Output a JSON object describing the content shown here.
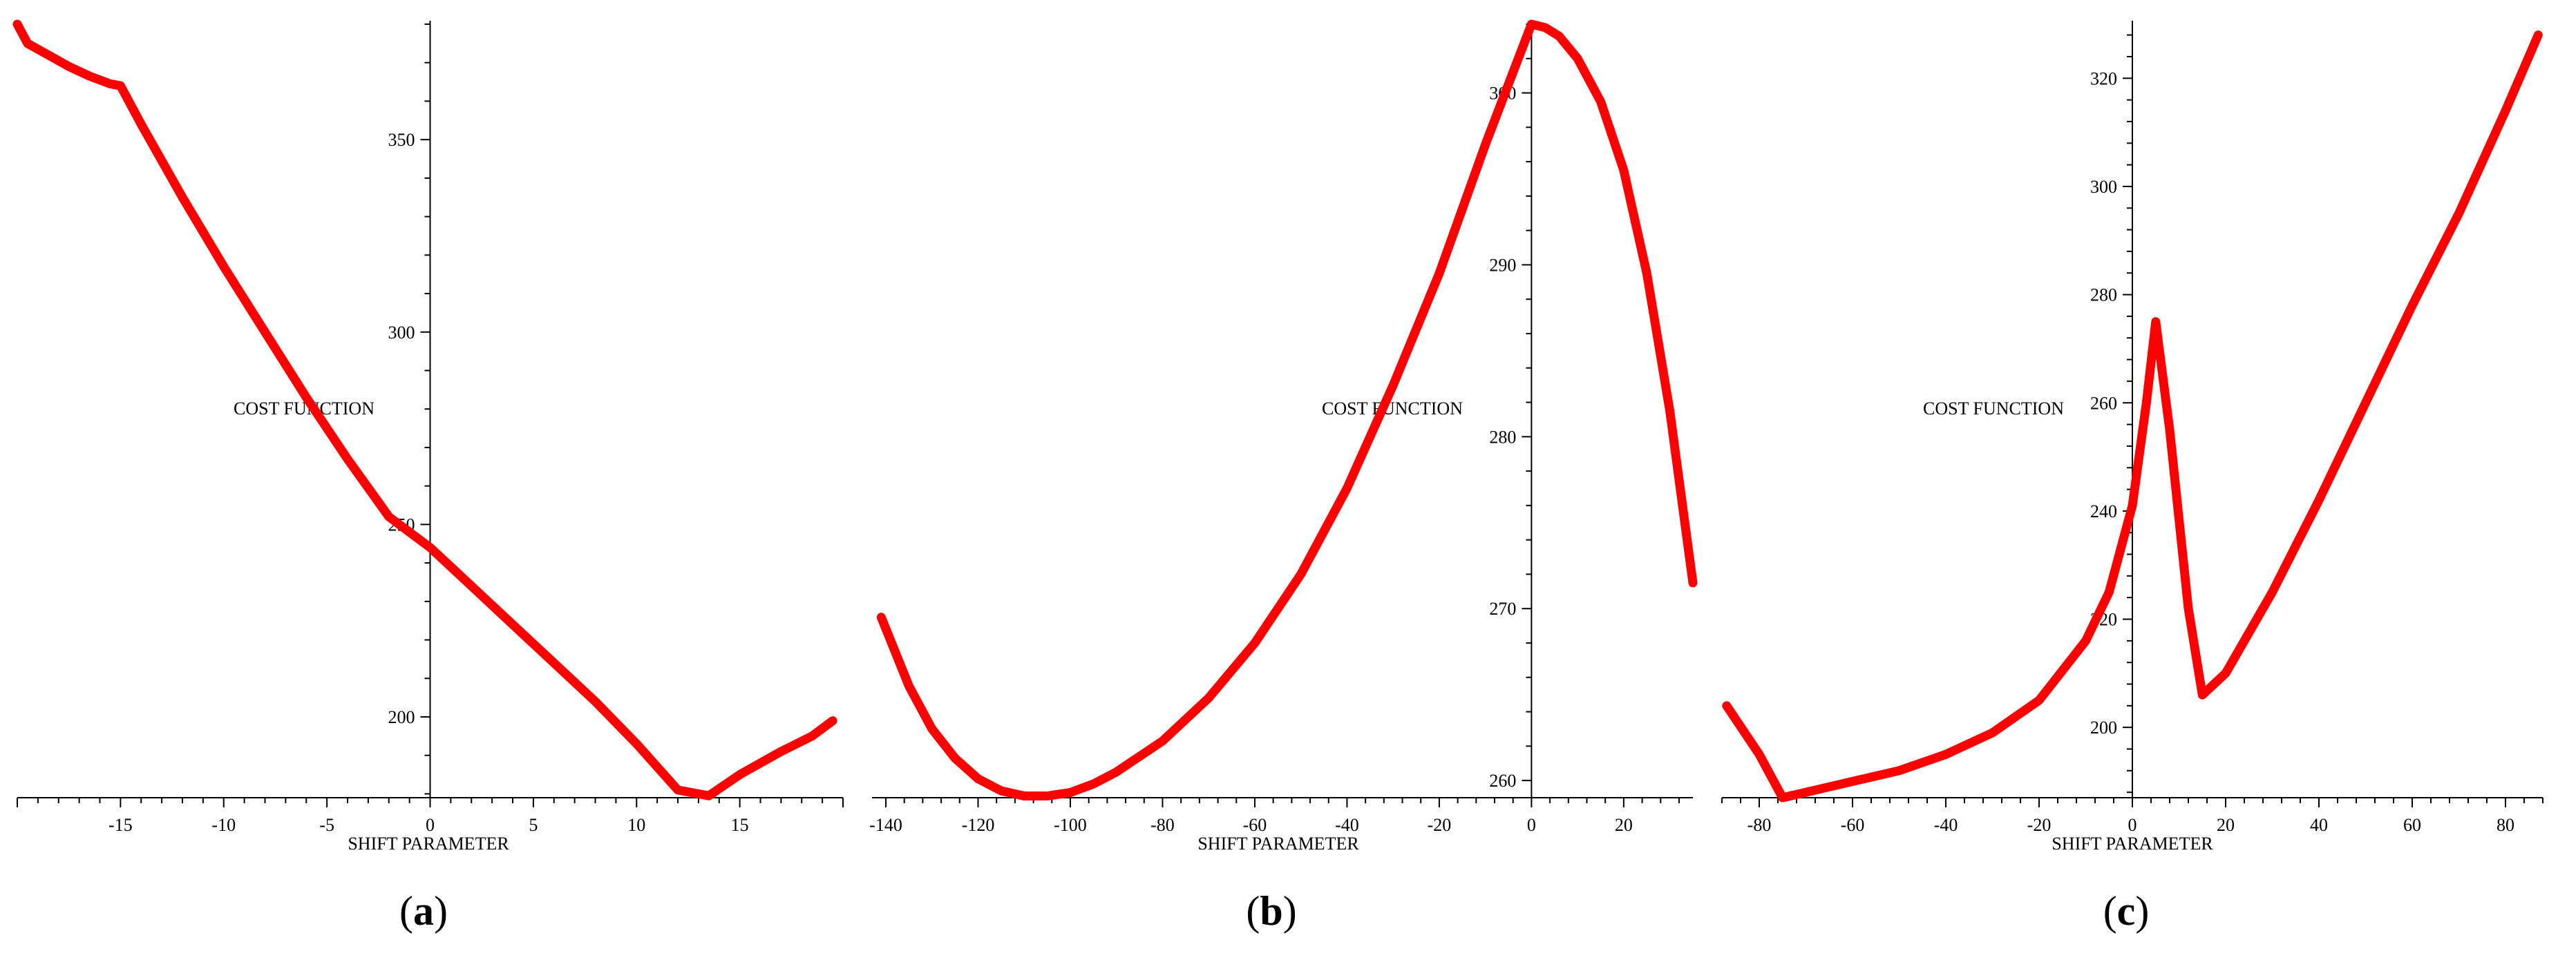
{
  "chart_data": [
    {
      "type": "line",
      "panel_label": "a",
      "xlabel": "SHIFT PARAMETER",
      "ylabel": "COST FUNCTION",
      "xlim": [
        -20,
        20
      ],
      "ylim": [
        179,
        380
      ],
      "x_ticks": [
        -15,
        -10,
        -5,
        0,
        5,
        10,
        15
      ],
      "y_ticks": [
        200,
        250,
        300,
        350
      ],
      "series": [
        {
          "color": "#ff0000",
          "x": [
            -20,
            -19.5,
            -18.5,
            -17.5,
            -16.5,
            -15.5,
            -15,
            -14,
            -12,
            -10,
            -8,
            -6,
            -4,
            -2,
            0,
            2,
            4,
            6,
            8,
            10,
            12,
            13.5,
            15,
            17,
            18.5,
            19.5
          ],
          "y": [
            380,
            375,
            372,
            369,
            366.5,
            364.5,
            364,
            354,
            335,
            317,
            300,
            283,
            267,
            252,
            244,
            234,
            224,
            214,
            204,
            193,
            181,
            179.5,
            185,
            191,
            195,
            199
          ]
        }
      ]
    },
    {
      "type": "line",
      "panel_label": "b",
      "xlabel": "SHIFT PARAMETER",
      "ylabel": "COST FUNCTION",
      "xlim": [
        -143,
        35
      ],
      "ylim": [
        259,
        304
      ],
      "x_ticks": [
        -140,
        -120,
        -100,
        -80,
        -60,
        -40,
        -20,
        0,
        20
      ],
      "y_ticks": [
        260,
        270,
        280,
        290,
        300
      ],
      "series": [
        {
          "color": "#ff0000",
          "x": [
            -141,
            -135,
            -130,
            -125,
            -120,
            -115,
            -110,
            -105,
            -100,
            -95,
            -90,
            -80,
            -70,
            -60,
            -50,
            -40,
            -30,
            -20,
            -10,
            -5,
            0,
            3,
            6,
            10,
            15,
            20,
            25,
            30,
            35
          ],
          "y": [
            269.5,
            265.5,
            263,
            261.3,
            260.1,
            259.4,
            259.1,
            259.1,
            259.3,
            259.8,
            260.5,
            262.3,
            264.8,
            268,
            272,
            277,
            283,
            289.5,
            297,
            300.5,
            304,
            303.8,
            303.3,
            302,
            299.5,
            295.5,
            289.5,
            281.5,
            271.5
          ]
        }
      ]
    },
    {
      "type": "line",
      "panel_label": "c",
      "xlabel": "SHIFT PARAMETER",
      "ylabel": "COST FUNCTION",
      "xlim": [
        -88,
        88
      ],
      "ylim": [
        187,
        330
      ],
      "x_ticks": [
        -80,
        -60,
        -40,
        -20,
        0,
        20,
        40,
        60,
        80
      ],
      "y_ticks": [
        200,
        220,
        240,
        260,
        280,
        300,
        320
      ],
      "series": [
        {
          "color": "#ff0000",
          "x": [
            -87,
            -80,
            -75,
            -65,
            -50,
            -40,
            -30,
            -20,
            -10,
            -5,
            0,
            3,
            5,
            8,
            12,
            15,
            20,
            30,
            40,
            50,
            60,
            70,
            80,
            87
          ],
          "y": [
            204,
            195,
            187,
            189,
            192,
            195,
            199,
            205,
            216,
            225,
            241,
            260,
            275,
            255,
            222,
            206,
            210,
            225,
            242,
            260,
            278,
            295,
            314,
            328
          ]
        }
      ]
    }
  ]
}
